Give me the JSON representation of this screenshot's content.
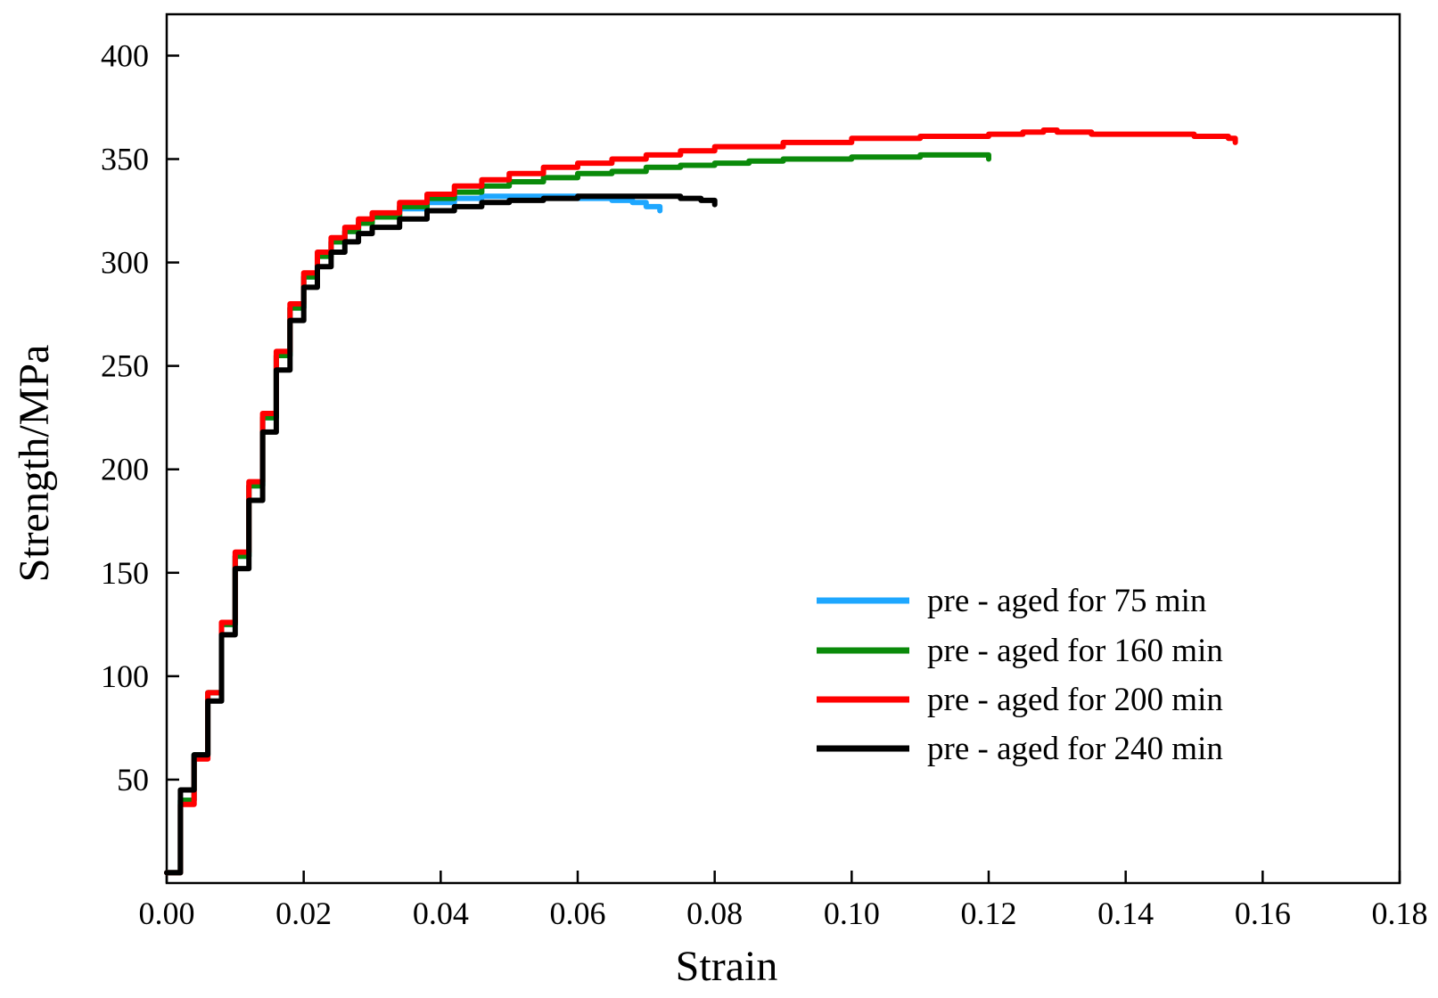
{
  "chart_data": {
    "type": "line",
    "title": "",
    "xlabel": "Strain",
    "ylabel": "Strength/MPa",
    "xlim": [
      0.0,
      0.18
    ],
    "ylim": [
      0,
      420
    ],
    "grid": false,
    "legend_position": "center-right",
    "x_ticks": [
      {
        "value": 0.0,
        "label": "0.00"
      },
      {
        "value": 0.02,
        "label": "0.02"
      },
      {
        "value": 0.04,
        "label": "0.04"
      },
      {
        "value": 0.06,
        "label": "0.06"
      },
      {
        "value": 0.08,
        "label": "0.08"
      },
      {
        "value": 0.1,
        "label": "0.10"
      },
      {
        "value": 0.12,
        "label": "0.12"
      },
      {
        "value": 0.14,
        "label": "0.14"
      },
      {
        "value": 0.16,
        "label": "0.16"
      },
      {
        "value": 0.18,
        "label": "0.18"
      }
    ],
    "y_ticks": [
      {
        "value": 50,
        "label": "50"
      },
      {
        "value": 100,
        "label": "100"
      },
      {
        "value": 150,
        "label": "150"
      },
      {
        "value": 200,
        "label": "200"
      },
      {
        "value": 250,
        "label": "250"
      },
      {
        "value": 300,
        "label": "300"
      },
      {
        "value": 350,
        "label": "350"
      },
      {
        "value": 400,
        "label": "400"
      }
    ],
    "series": [
      {
        "name": "pre - aged for 75 min",
        "color": "#1ea7ff",
        "x": [
          0.0,
          0.002,
          0.004,
          0.006,
          0.008,
          0.01,
          0.012,
          0.014,
          0.016,
          0.018,
          0.02,
          0.022,
          0.024,
          0.026,
          0.028,
          0.03,
          0.034,
          0.038,
          0.042,
          0.046,
          0.05,
          0.055,
          0.06,
          0.065,
          0.068,
          0.07,
          0.072
        ],
        "y": [
          5,
          40,
          62,
          92,
          125,
          158,
          192,
          225,
          255,
          278,
          293,
          303,
          310,
          315,
          319,
          322,
          326,
          329,
          331,
          332,
          332,
          332,
          331,
          330,
          329,
          327,
          325
        ]
      },
      {
        "name": "pre - aged for 160 min",
        "color": "#0a8a0a",
        "x": [
          0.0,
          0.002,
          0.004,
          0.006,
          0.008,
          0.01,
          0.012,
          0.014,
          0.016,
          0.018,
          0.02,
          0.022,
          0.024,
          0.026,
          0.028,
          0.03,
          0.034,
          0.038,
          0.042,
          0.046,
          0.05,
          0.055,
          0.06,
          0.065,
          0.07,
          0.075,
          0.08,
          0.085,
          0.09,
          0.1,
          0.11,
          0.118,
          0.12
        ],
        "y": [
          5,
          40,
          62,
          92,
          125,
          158,
          192,
          225,
          255,
          278,
          293,
          303,
          310,
          315,
          319,
          322,
          327,
          331,
          334,
          337,
          339,
          341,
          343,
          344,
          346,
          347,
          348,
          349,
          350,
          351,
          352,
          352,
          350
        ]
      },
      {
        "name": "pre - aged for 200 min",
        "color": "#ff0000",
        "x": [
          0.0,
          0.002,
          0.004,
          0.006,
          0.008,
          0.01,
          0.012,
          0.014,
          0.016,
          0.018,
          0.02,
          0.022,
          0.024,
          0.026,
          0.028,
          0.03,
          0.034,
          0.038,
          0.042,
          0.046,
          0.05,
          0.055,
          0.06,
          0.065,
          0.07,
          0.075,
          0.08,
          0.09,
          0.1,
          0.11,
          0.12,
          0.125,
          0.128,
          0.13,
          0.135,
          0.14,
          0.146,
          0.15,
          0.155,
          0.156
        ],
        "y": [
          5,
          38,
          60,
          92,
          126,
          160,
          194,
          227,
          257,
          280,
          295,
          305,
          312,
          317,
          321,
          324,
          329,
          333,
          337,
          340,
          343,
          346,
          348,
          350,
          352,
          354,
          356,
          358,
          360,
          361,
          362,
          363,
          364,
          363,
          362,
          362,
          362,
          361,
          360,
          358
        ]
      },
      {
        "name": "pre - aged for 240 min",
        "color": "#000000",
        "x": [
          0.0,
          0.002,
          0.004,
          0.006,
          0.008,
          0.01,
          0.012,
          0.014,
          0.016,
          0.018,
          0.02,
          0.022,
          0.024,
          0.026,
          0.028,
          0.03,
          0.034,
          0.038,
          0.042,
          0.046,
          0.05,
          0.055,
          0.06,
          0.065,
          0.07,
          0.075,
          0.078,
          0.08
        ],
        "y": [
          5,
          45,
          62,
          88,
          120,
          152,
          185,
          218,
          248,
          272,
          288,
          298,
          305,
          310,
          314,
          317,
          321,
          325,
          327,
          329,
          330,
          331,
          332,
          332,
          332,
          331,
          330,
          328
        ]
      }
    ]
  }
}
